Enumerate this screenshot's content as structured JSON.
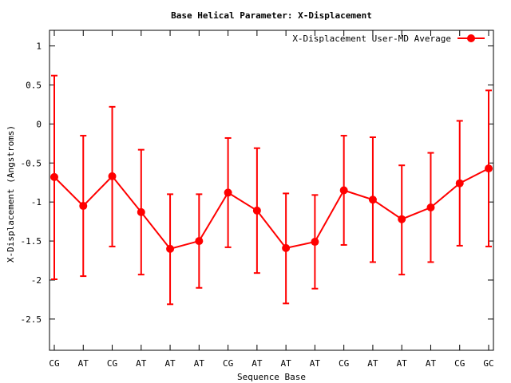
{
  "chart_data": {
    "type": "line",
    "title": "Base  Helical Parameter: X-Displacement",
    "xlabel": "Sequence Base",
    "ylabel": "X-Displacement (Angstroms)",
    "categories": [
      "CG",
      "AT",
      "CG",
      "AT",
      "AT",
      "AT",
      "CG",
      "AT",
      "AT",
      "AT",
      "CG",
      "AT",
      "AT",
      "AT",
      "CG",
      "GC"
    ],
    "ylim": [
      -2.9,
      1.2
    ],
    "yticks": [
      1,
      0.5,
      0,
      -0.5,
      -1,
      -1.5,
      -2,
      -2.5
    ],
    "ytick_labels": [
      "1",
      "0.5",
      "0",
      "-0.5",
      "-1",
      "-1.5",
      "-2",
      "-2.5"
    ],
    "legend_position": "top-right",
    "grid": false,
    "series": [
      {
        "name": "X-Displacement User-MD Average",
        "color": "#ff0000",
        "values": [
          -0.68,
          -1.05,
          -0.67,
          -1.13,
          -1.6,
          -1.5,
          -0.88,
          -1.11,
          -1.59,
          -1.51,
          -0.85,
          -0.97,
          -1.22,
          -1.07,
          -0.76,
          -0.57
        ],
        "error_low": [
          -1.99,
          -1.95,
          -1.57,
          -1.93,
          -2.31,
          -2.1,
          -1.58,
          -1.91,
          -2.3,
          -2.11,
          -1.55,
          -1.77,
          -1.93,
          -1.77,
          -1.56,
          -1.57
        ],
        "error_high": [
          0.62,
          -0.15,
          0.22,
          -0.33,
          -0.9,
          -0.9,
          -0.18,
          -0.31,
          -0.89,
          -0.91,
          -0.15,
          -0.17,
          -0.53,
          -0.37,
          0.04,
          0.43
        ]
      }
    ]
  }
}
